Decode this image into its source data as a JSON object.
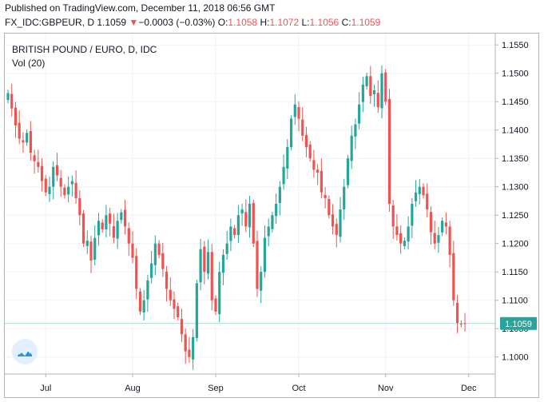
{
  "header": {
    "published": "Published on TradingView.com, December 11, 2018 06:56 GMT",
    "symbol": "FX_IDC:GBPEUR, D",
    "price": "1.1059",
    "change_arrow": "▼",
    "change": "−0.0003 (−0.03%)",
    "o_label": "O:",
    "o_value": "1.1058",
    "h_label": "H:",
    "h_value": "1.1072",
    "l_label": "L:",
    "l_value": "1.1056",
    "c_label": "C:",
    "c_value": "1.1059"
  },
  "legend": {
    "title": "BRITISH POUND / EURO, D, IDC",
    "volume": "Vol (20)"
  },
  "colors": {
    "up": "#26a69a",
    "down": "#ef5350",
    "last_price": "#26a69a",
    "grid": "#f0f3fa",
    "axis_text": "#131722"
  },
  "chart_data": {
    "type": "candlestick",
    "series_name": "BRITISH POUND / EURO, D, IDC",
    "ylim": [
      1.097,
      1.157
    ],
    "y_ticks": [
      "1.1550",
      "1.1500",
      "1.1450",
      "1.1400",
      "1.1350",
      "1.1300",
      "1.1250",
      "1.1200",
      "1.1150",
      "1.1100",
      "1.1050",
      "1.1000"
    ],
    "x_ticks": [
      "Jul",
      "Aug",
      "Sep",
      "Oct",
      "Nov",
      "Dec"
    ],
    "x_tick_index": [
      10,
      33,
      55,
      77,
      100,
      122
    ],
    "last_price": 1.1059,
    "last_price_label": "1.1059",
    "closes": [
      1.1465,
      1.1438,
      1.1408,
      1.1385,
      1.1378,
      1.1395,
      1.136,
      1.1345,
      1.1335,
      1.131,
      1.129,
      1.13,
      1.1335,
      1.132,
      1.13,
      1.1285,
      1.13,
      1.131,
      1.128,
      1.125,
      1.12,
      1.1205,
      1.117,
      1.121,
      1.124,
      1.1225,
      1.125,
      1.1235,
      1.121,
      1.124,
      1.1255,
      1.123,
      1.12,
      1.1175,
      1.112,
      1.108,
      1.11,
      1.1135,
      1.1165,
      1.12,
      1.118,
      1.1155,
      1.112,
      1.11,
      1.1085,
      1.107,
      1.104,
      1.101,
      1.1,
      1.1035,
      1.113,
      1.119,
      1.115,
      1.1185,
      1.11,
      1.108,
      1.115,
      1.118,
      1.12,
      1.123,
      1.1215,
      1.125,
      1.126,
      1.123,
      1.127,
      1.12,
      1.112,
      1.115,
      1.121,
      1.123,
      1.125,
      1.127,
      1.13,
      1.1335,
      1.137,
      1.142,
      1.1445,
      1.142,
      1.139,
      1.137,
      1.135,
      1.133,
      1.1325,
      1.129,
      1.128,
      1.125,
      1.123,
      1.1215,
      1.126,
      1.13,
      1.135,
      1.139,
      1.141,
      1.1445,
      1.148,
      1.1495,
      1.146,
      1.147,
      1.144,
      1.15,
      1.145,
      1.127,
      1.123,
      1.1215,
      1.12,
      1.1205,
      1.123,
      1.127,
      1.129,
      1.13,
      1.1285,
      1.126,
      1.122,
      1.12,
      1.1215,
      1.124,
      1.123,
      1.118,
      1.11,
      1.106,
      1.1058,
      1.1059
    ],
    "ohlc_note": ""
  },
  "branding": {
    "logo_icon": "tradingview-logo-icon"
  }
}
